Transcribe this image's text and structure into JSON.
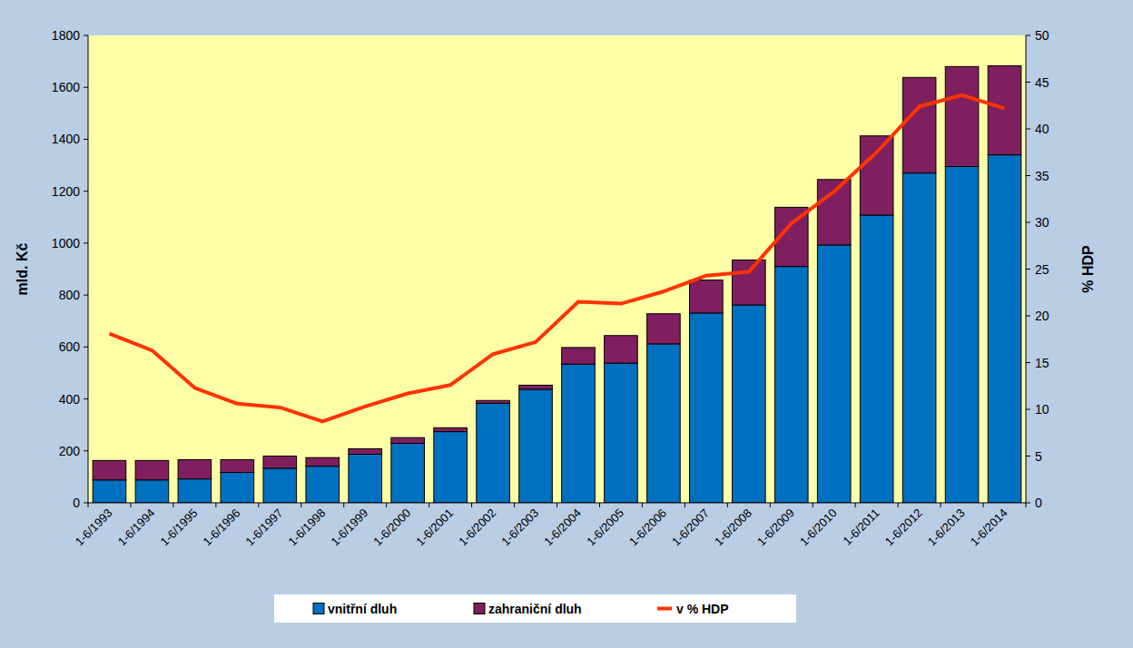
{
  "chart_data": {
    "type": "bar",
    "stacked": true,
    "categories": [
      "1-6/1993",
      "1-6/1994",
      "1-6/1995",
      "1-6/1996",
      "1-6/1997",
      "1-6/1998",
      "1-6/1999",
      "1-6/2000",
      "1-6/2001",
      "1-6/2002",
      "1-6/2003",
      "1-6/2004",
      "1-6/2005",
      "1-6/2006",
      "1-6/2007",
      "1-6/2008",
      "1-6/2009",
      "1-6/2010",
      "1-6/2011",
      "1-6/2012",
      "1-6/2013",
      "1-6/2014"
    ],
    "series": [
      {
        "name": "vnitřní dluh",
        "type": "bar",
        "color": "#0070c0",
        "values": [
          88,
          88,
          92,
          117,
          133,
          141,
          187,
          229,
          274,
          383,
          437,
          534,
          538,
          612,
          731,
          762,
          910,
          993,
          1108,
          1270,
          1295,
          1340
        ]
      },
      {
        "name": "zahraniční dluh",
        "type": "bar",
        "color": "#7f1f5f",
        "values": [
          75,
          75,
          74,
          49,
          47,
          33,
          21,
          22,
          15,
          11,
          16,
          64,
          106,
          116,
          127,
          173,
          228,
          252,
          305,
          368,
          385,
          343
        ]
      },
      {
        "name": "v % HDP",
        "type": "line",
        "axis": "y2",
        "color": "#ff3300",
        "values": [
          18.1,
          16.3,
          12.3,
          10.6,
          10.2,
          8.7,
          10.3,
          11.7,
          12.6,
          15.9,
          17.2,
          21.5,
          21.3,
          22.6,
          24.3,
          24.7,
          29.9,
          33.3,
          37.5,
          42.4,
          43.6,
          42.2
        ]
      }
    ],
    "y_label": "mld. Kč",
    "y2_label": "% HDP",
    "ylim": [
      0,
      1800
    ],
    "yticks": [
      0,
      200,
      400,
      600,
      800,
      1000,
      1200,
      1400,
      1600,
      1800
    ],
    "y2lim": [
      0,
      50
    ],
    "y2ticks": [
      0,
      5,
      10,
      15,
      20,
      25,
      30,
      35,
      40,
      45,
      50
    ],
    "grid": false,
    "legend": "bottom"
  }
}
